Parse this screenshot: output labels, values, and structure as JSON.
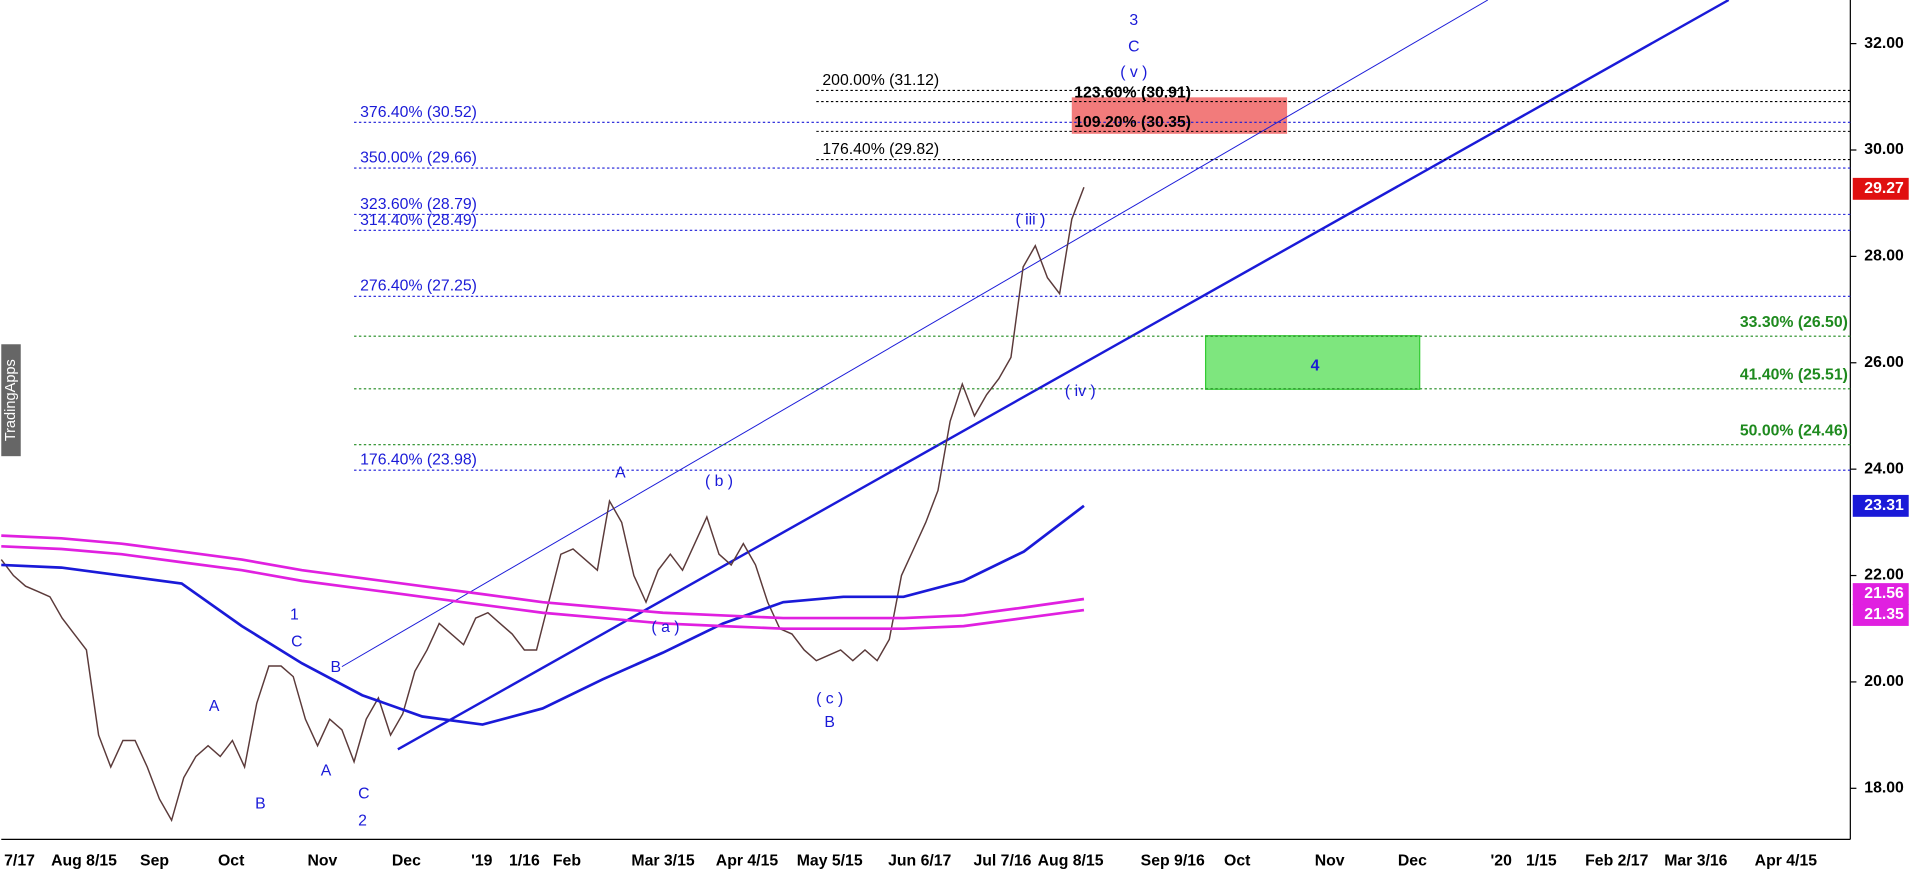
{
  "chart_data": {
    "type": "line",
    "watermark": "TradingApps",
    "ylim": [
      17.04,
      32.82
    ],
    "yticks": [
      {
        "value": 18,
        "label": "18.00"
      },
      {
        "value": 20,
        "label": "20.00"
      },
      {
        "value": 22,
        "label": "22.00"
      },
      {
        "value": 24,
        "label": "24.00"
      },
      {
        "value": 26,
        "label": "26.00"
      },
      {
        "value": 28,
        "label": "28.00"
      },
      {
        "value": 30,
        "label": "30.00"
      },
      {
        "value": 32,
        "label": "32.00"
      }
    ],
    "x_labels": [
      "7/17",
      "Aug 8/15",
      "Sep",
      "Oct",
      "Nov",
      "Dec",
      "'19",
      "1/16",
      "Feb",
      "Mar 3/15",
      "Apr 4/15",
      "May 5/15",
      "Jun 6/17",
      "Jul 7/16",
      "Aug 8/15",
      "Sep 9/16",
      "Oct",
      "Nov",
      "Dec",
      "'20",
      "1/15",
      "Feb 2/17",
      "Mar 3/16",
      "Apr 4/15"
    ],
    "series": [
      {
        "color": "#5b3a3a",
        "values": [
          22.3,
          22.0,
          21.8,
          21.7,
          21.6,
          21.2,
          20.9,
          20.6,
          19.0,
          18.4,
          18.9,
          18.9,
          18.4,
          17.8,
          17.4,
          18.2,
          18.6,
          18.8,
          18.6,
          18.9,
          18.4,
          19.6,
          20.3,
          20.3,
          20.1,
          19.3,
          18.8,
          19.3,
          19.1,
          18.5,
          19.3,
          19.7,
          19.0,
          19.4,
          20.2,
          20.6,
          21.1,
          20.9,
          20.7,
          21.2,
          21.3,
          21.1,
          20.9,
          20.6,
          20.6,
          21.5,
          22.4,
          22.5,
          22.3,
          22.1,
          23.4,
          23.0,
          22.0,
          21.5,
          22.1,
          22.4,
          22.1,
          22.6,
          23.1,
          22.4,
          22.2,
          22.6,
          22.2,
          21.5,
          21.0,
          20.9,
          20.6,
          20.4,
          20.5,
          20.6,
          20.4,
          20.6,
          20.4,
          20.8,
          22.0,
          22.5,
          23.0,
          23.6,
          24.9,
          25.6,
          25.0,
          25.4,
          25.7,
          26.1,
          27.8,
          28.2,
          27.6,
          27.3,
          28.7,
          29.3
        ]
      },
      {
        "color": "#1a1ad8",
        "values": [
          22.2,
          22.15,
          22.0,
          21.85,
          21.05,
          20.35,
          19.75,
          19.35,
          19.2,
          19.5,
          20.05,
          20.55,
          21.1,
          21.5,
          21.6,
          21.6,
          21.9,
          22.45,
          23.31
        ]
      },
      {
        "color": "#e020e0",
        "values": [
          22.75,
          22.7,
          22.6,
          22.45,
          22.3,
          22.1,
          21.95,
          21.8,
          21.65,
          21.5,
          21.4,
          21.3,
          21.25,
          21.2,
          21.2,
          21.2,
          21.25,
          21.4,
          21.56
        ]
      },
      {
        "color": "#e020e0",
        "values": [
          22.55,
          22.5,
          22.4,
          22.25,
          22.1,
          21.9,
          21.75,
          21.6,
          21.45,
          21.3,
          21.2,
          21.1,
          21.05,
          21.0,
          21.0,
          21.0,
          21.05,
          21.2,
          21.35
        ]
      }
    ],
    "level_groups": [
      {
        "color": "#1a1ad8",
        "levels": [
          {
            "value": 30.52,
            "label": "376.40% (30.52)"
          },
          {
            "value": 29.66,
            "label": "350.00% (29.66)"
          },
          {
            "value": 28.79,
            "label": "323.60% (28.79)"
          },
          {
            "value": 28.49,
            "label": "314.40% (28.49)"
          },
          {
            "value": 27.25,
            "label": "276.40% (27.25)"
          },
          {
            "value": 23.98,
            "label": "176.40% (23.98)"
          }
        ]
      },
      {
        "color": "#000000",
        "levels": [
          {
            "value": 31.12,
            "label": "200.00% (31.12)"
          },
          {
            "value": 29.82,
            "label": "176.40% (29.82)"
          },
          {
            "value": 30.91,
            "label": "123.60% (30.91)"
          },
          {
            "value": 30.35,
            "label": "109.20% (30.35)"
          }
        ]
      },
      {
        "color": "#1e8a1e",
        "levels": [
          {
            "value": 26.5,
            "label": "33.30% (26.50)"
          },
          {
            "value": 25.51,
            "label": "41.40% (25.51)"
          },
          {
            "value": 24.46,
            "label": "50.00% (24.46)"
          }
        ]
      }
    ],
    "wave_labels": [
      "3",
      "C",
      "( v )",
      "( iii )",
      "( iv )",
      "A",
      "( b )",
      "( a )",
      "( c )",
      "B",
      "1",
      "C",
      "B",
      "A",
      "A",
      "B",
      "C",
      "2",
      "4"
    ],
    "price_labels": [
      {
        "value": 29.27,
        "color": "#e01010"
      },
      {
        "value": 23.31,
        "color": "#1a1ad8"
      },
      {
        "value": 21.56,
        "color": "#e020e0"
      },
      {
        "value": 21.35,
        "color": "#e020e0"
      }
    ]
  }
}
